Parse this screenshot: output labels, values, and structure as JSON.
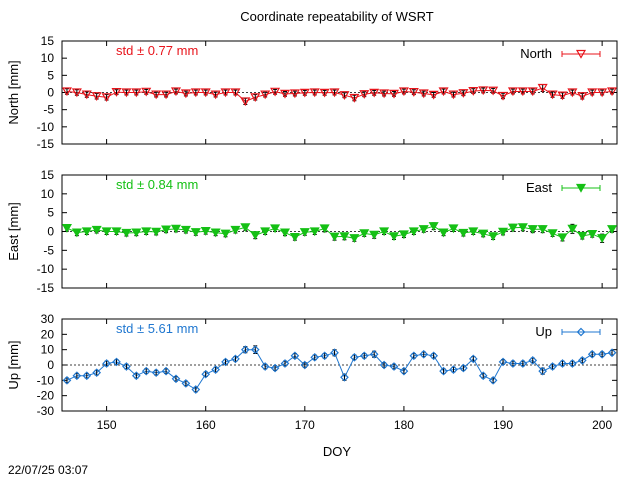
{
  "page": {
    "title": "Coordinate repeatability of WSRT",
    "footer": "22/07/25 03:07"
  },
  "chart_data": {
    "type": "line",
    "title": "Coordinate repeatability of WSRT",
    "xlabel": "DOY",
    "xlim": [
      145.5,
      201.5
    ],
    "xticks": [
      150,
      160,
      170,
      180,
      190,
      200
    ],
    "panels": [
      {
        "name": "North",
        "ylabel": "North [mm]",
        "ylim": [
          -15,
          15
        ],
        "yticks": [
          15,
          10,
          5,
          0,
          -5,
          -10,
          -15
        ],
        "std_label": "std ± 0.77 mm",
        "color": "#e8141b",
        "marker": "triangle-down-open",
        "x": [
          146,
          147,
          148,
          149,
          150,
          151,
          152,
          153,
          154,
          155,
          156,
          157,
          158,
          159,
          160,
          161,
          162,
          163,
          164,
          165,
          166,
          167,
          168,
          169,
          170,
          171,
          172,
          173,
          174,
          175,
          176,
          177,
          178,
          179,
          180,
          181,
          182,
          183,
          184,
          185,
          186,
          187,
          188,
          189,
          190,
          191,
          192,
          193,
          194,
          195,
          196,
          197,
          198,
          199,
          200,
          201
        ],
        "y": [
          0.3,
          0,
          -0.6,
          -1.1,
          -1.4,
          0.1,
          0,
          0,
          0.2,
          -0.6,
          -0.6,
          0.3,
          -0.3,
          0,
          0,
          -0.6,
          0,
          0,
          -2.6,
          -1.4,
          -0.6,
          0.2,
          -0.4,
          -0.3,
          -0.1,
          0,
          -0.1,
          0,
          -0.8,
          -1.6,
          -0.5,
          -0.1,
          -0.3,
          -0.4,
          0.3,
          0.1,
          -0.3,
          -0.7,
          0.3,
          -0.6,
          -0.2,
          0.4,
          0.6,
          0.5,
          -1.0,
          0.3,
          0.3,
          0.3,
          1.3,
          -0.6,
          -0.9,
          0,
          -1.1,
          0,
          0,
          0.3
        ],
        "err": [
          0.8,
          0.8,
          0.8,
          0.8,
          0.8,
          0.7,
          0.7,
          0.7,
          0.7,
          0.7,
          0.7,
          0.7,
          0.7,
          0.7,
          0.7,
          0.7,
          0.7,
          0.7,
          0.9,
          0.8,
          0.7,
          0.7,
          0.7,
          0.7,
          0.7,
          0.7,
          0.7,
          0.7,
          0.7,
          0.8,
          0.7,
          0.7,
          0.7,
          0.7,
          0.7,
          0.7,
          0.7,
          0.7,
          0.7,
          0.7,
          0.7,
          0.7,
          0.7,
          0.7,
          0.8,
          0.7,
          0.7,
          0.7,
          1.0,
          0.8,
          0.8,
          0.7,
          0.8,
          0.7,
          0.7,
          0.7
        ]
      },
      {
        "name": "East",
        "ylabel": "East [mm]",
        "ylim": [
          -15,
          15
        ],
        "yticks": [
          15,
          10,
          5,
          0,
          -5,
          -10,
          -15
        ],
        "std_label": "std ± 0.84 mm",
        "color": "#15c015",
        "marker": "triangle-down-filled",
        "x": [
          146,
          147,
          148,
          149,
          150,
          151,
          152,
          153,
          154,
          155,
          156,
          157,
          158,
          159,
          160,
          161,
          162,
          163,
          164,
          165,
          166,
          167,
          168,
          169,
          170,
          171,
          172,
          173,
          174,
          175,
          176,
          177,
          178,
          179,
          180,
          181,
          182,
          183,
          184,
          185,
          186,
          187,
          188,
          189,
          190,
          191,
          192,
          193,
          194,
          195,
          196,
          197,
          198,
          199,
          200,
          201
        ],
        "y": [
          0.9,
          -0.3,
          0,
          0.4,
          0,
          0,
          -0.4,
          -0.3,
          0,
          -0.1,
          0.5,
          0.7,
          0.4,
          -0.2,
          0.1,
          -0.3,
          -0.6,
          0.4,
          1.1,
          -1.0,
          0,
          0.8,
          -0.3,
          -1.5,
          -0.2,
          0,
          0.8,
          -1.4,
          -1.3,
          -1.8,
          -0.5,
          -0.9,
          0,
          -1.3,
          -0.8,
          0,
          0.6,
          1.4,
          -0.3,
          0.8,
          -0.4,
          0,
          -0.6,
          -1.3,
          -0.1,
          1.0,
          1.1,
          0.6,
          0.6,
          -0.5,
          -1.6,
          0.7,
          -1.2,
          -0.7,
          -1.8,
          0.6
        ],
        "err": [
          0.8,
          0.8,
          0.8,
          0.8,
          0.8,
          0.8,
          0.8,
          0.8,
          0.8,
          0.8,
          0.8,
          0.8,
          0.8,
          0.8,
          0.8,
          0.8,
          0.8,
          0.8,
          0.8,
          0.9,
          0.8,
          0.8,
          0.8,
          0.8,
          0.8,
          0.8,
          0.9,
          0.9,
          0.9,
          0.8,
          0.8,
          0.9,
          0.8,
          0.8,
          0.8,
          0.8,
          0.8,
          0.9,
          0.8,
          0.8,
          0.8,
          0.8,
          0.8,
          0.8,
          0.8,
          0.9,
          0.9,
          0.9,
          0.9,
          0.8,
          0.9,
          1.2,
          0.8,
          0.8,
          1.1,
          0.8
        ]
      },
      {
        "name": "Up",
        "ylabel": "Up [mm]",
        "ylim": [
          -30,
          30
        ],
        "yticks": [
          30,
          20,
          10,
          0,
          -10,
          -20,
          -30
        ],
        "std_label": "std ± 5.61 mm",
        "color": "#1f77d0",
        "marker": "diamond-open",
        "x": [
          146,
          147,
          148,
          149,
          150,
          151,
          152,
          153,
          154,
          155,
          156,
          157,
          158,
          159,
          160,
          161,
          162,
          163,
          164,
          165,
          166,
          167,
          168,
          169,
          170,
          171,
          172,
          173,
          174,
          175,
          176,
          177,
          178,
          179,
          180,
          181,
          182,
          183,
          184,
          185,
          186,
          187,
          188,
          189,
          190,
          191,
          192,
          193,
          194,
          195,
          196,
          197,
          198,
          199,
          200,
          201
        ],
        "y": [
          -10,
          -7,
          -7,
          -5,
          1,
          2,
          -1,
          -7,
          -4,
          -5,
          -4,
          -9,
          -12,
          -16,
          -6,
          -3,
          2,
          4,
          10,
          10,
          -1,
          -2,
          1,
          6,
          0,
          5,
          6,
          8,
          -8,
          5,
          6,
          7,
          0,
          -1,
          -4,
          6,
          7,
          6,
          -4,
          -3,
          -2,
          4,
          -7,
          -10,
          2,
          1,
          1,
          3,
          -4,
          -1,
          1,
          1,
          3,
          7,
          7,
          8
        ],
        "err": [
          1.5,
          1.5,
          1.5,
          1.5,
          1.5,
          1.5,
          1.5,
          1.5,
          1.5,
          1.5,
          1.5,
          1.5,
          1.5,
          1.5,
          1.5,
          1.5,
          1.5,
          1.5,
          2,
          2.5,
          1.5,
          1.5,
          1.5,
          1.5,
          1.5,
          1.5,
          1.5,
          2,
          2,
          1.5,
          1.5,
          2,
          1.5,
          1.5,
          1.5,
          1.5,
          1.5,
          1.5,
          1.5,
          1.5,
          1.5,
          1.5,
          1.5,
          1.5,
          1.5,
          1.5,
          1.5,
          1.5,
          2,
          1.5,
          1.5,
          1.5,
          1.5,
          1.5,
          1.5,
          1.5
        ]
      }
    ]
  }
}
